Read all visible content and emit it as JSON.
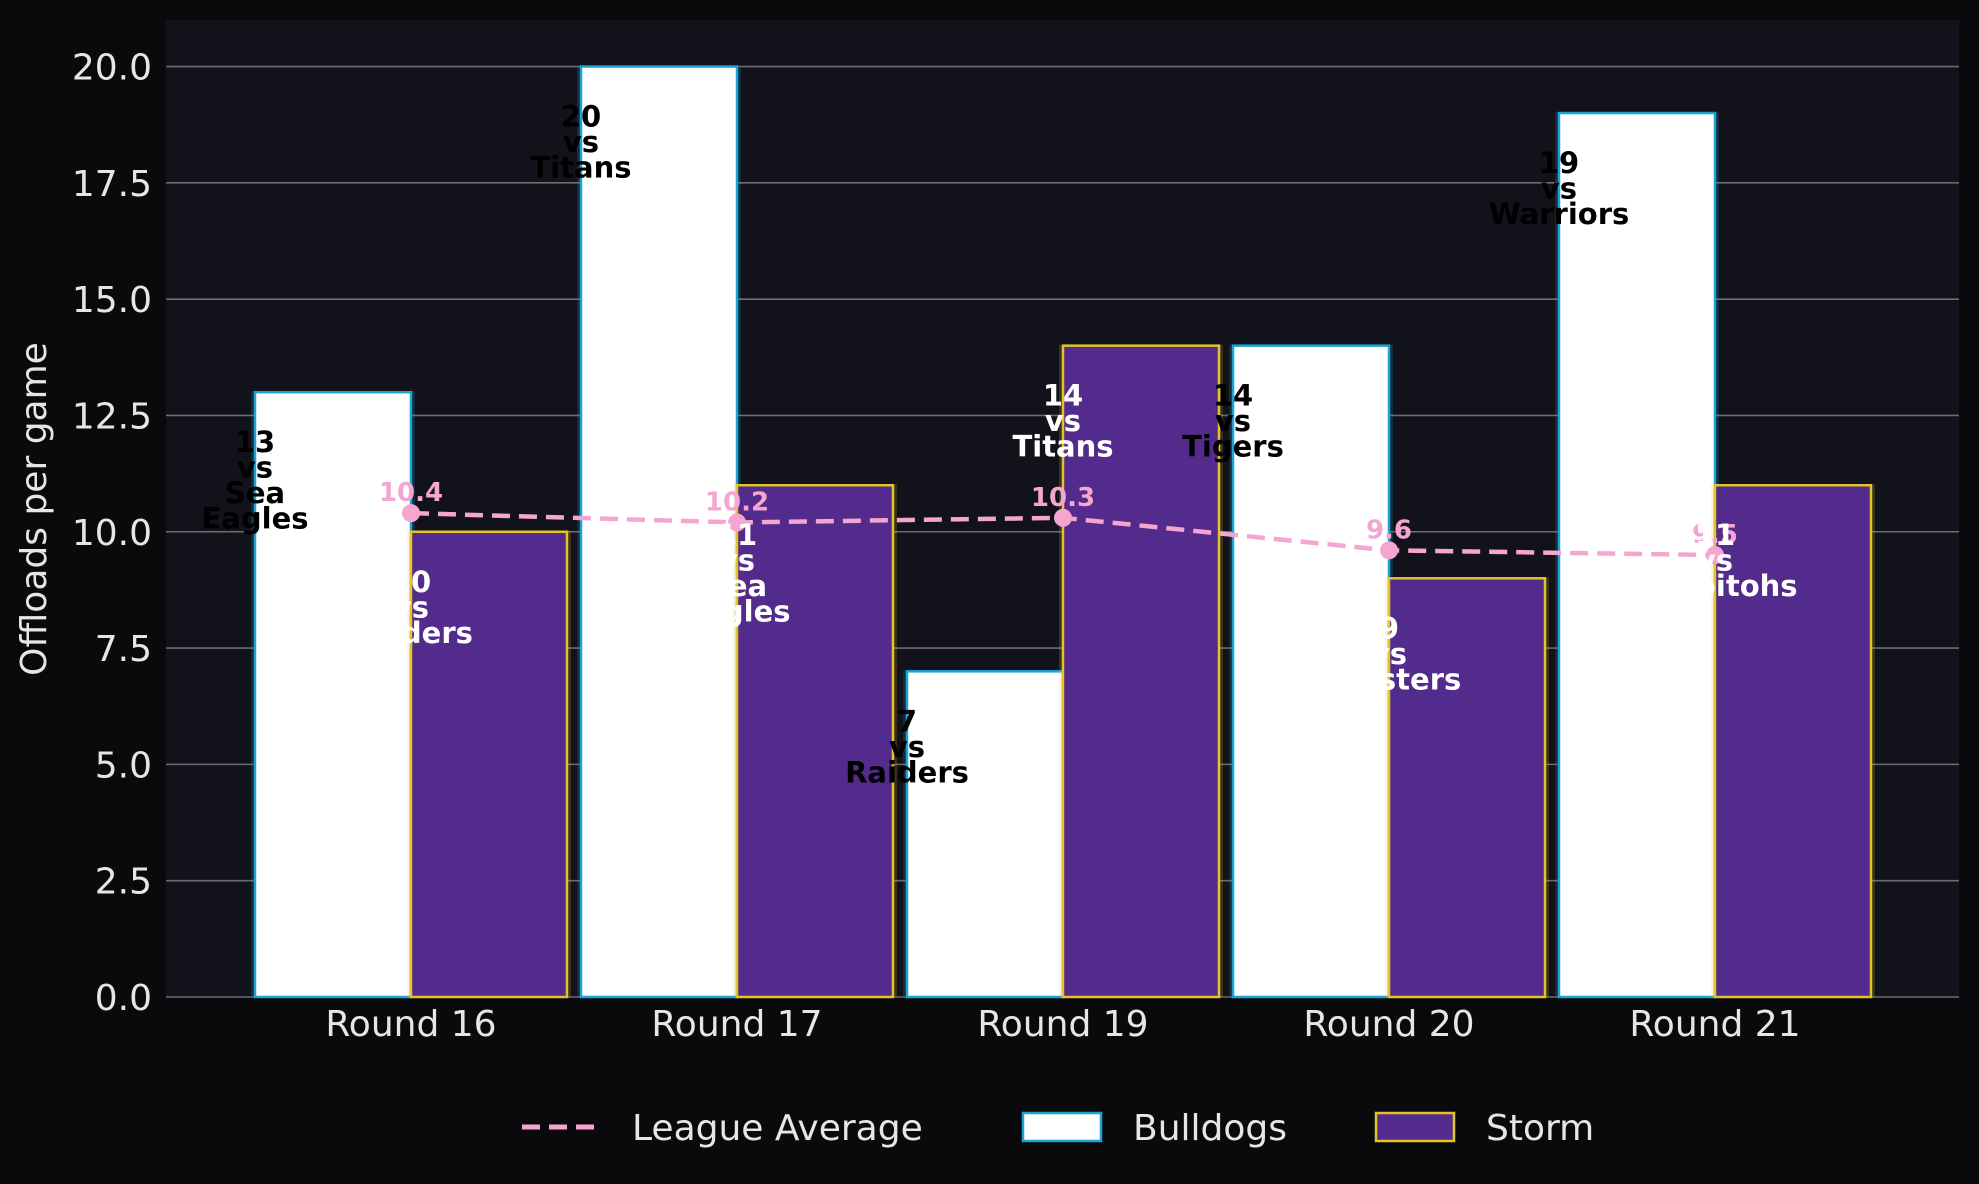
{
  "chart_data": {
    "type": "bar",
    "categories": [
      "Round 16",
      "Round 17",
      "Round 19",
      "Round 20",
      "Round 21"
    ],
    "ylabel": "Offloads per game",
    "xlabel": "",
    "ylim": [
      0,
      21
    ],
    "yticks": [
      "0.0",
      "2.5",
      "5.0",
      "7.5",
      "10.0",
      "12.5",
      "15.0",
      "17.5",
      "20.0"
    ],
    "grid": "horizontal",
    "legend_position": "bottom-center",
    "series": [
      {
        "name": "Bulldogs",
        "kind": "bar",
        "values": [
          13,
          20,
          7,
          14,
          19
        ],
        "labels": [
          "13\nvs\nSea\nEagles",
          "20\nvs\nTitans",
          "7\nvs\nRaiders",
          "14\nvs\nTigers",
          "19\nvs\nWarriors"
        ],
        "fill": "#ffffff",
        "edge": "#1ba3d6",
        "label_color": "#000000"
      },
      {
        "name": "Storm",
        "kind": "bar",
        "values": [
          10,
          11,
          14,
          9,
          11
        ],
        "labels": [
          "10\nvs\nRaiders",
          "11\nvs\nSea\nEagles",
          "14\nvs\nTitans",
          "9\nvs\nRoosters",
          "11\nvs\nRabbitohs"
        ],
        "fill": "#532b8c",
        "edge": "#e2c32a",
        "label_color": "#ffffff"
      },
      {
        "name": "League Average",
        "kind": "line",
        "values": [
          10.4,
          10.2,
          10.3,
          9.6,
          9.5
        ],
        "labels": [
          "10.4",
          "10.2",
          "10.3",
          "9.6",
          "9.5"
        ],
        "color": "#f4a6d0",
        "style": "dashed"
      }
    ],
    "legend_order": [
      "League Average",
      "Bulldogs",
      "Storm"
    ],
    "colors": {
      "figure_bg": "#0a0a0d",
      "axes_bg": "#12121a",
      "grid": "#6b6b70",
      "text": "#e6e6e6"
    }
  }
}
